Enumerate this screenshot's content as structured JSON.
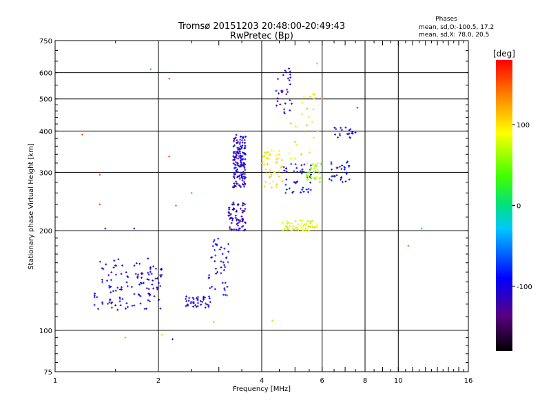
{
  "chart_data": {
    "type": "scatter",
    "title": "Tromsø 20151203 20:48:00-20:49:43",
    "subtitle": "RwPretec (Bp)",
    "xlabel": "Frequency [MHz]",
    "ylabel": "Stationary phase Virtual Height [km]",
    "x_scale": "log",
    "y_scale": "log",
    "xlim": [
      1,
      16
    ],
    "ylim": [
      75,
      750
    ],
    "x_ticks": [
      "1",
      "2",
      "4",
      "6",
      "8",
      "10",
      "16"
    ],
    "y_ticks": [
      "75",
      "100",
      "200",
      "300",
      "400",
      "500",
      "600",
      "750"
    ],
    "x_ticks_values": [
      1,
      2,
      4,
      6,
      8,
      10,
      16
    ],
    "y_ticks_values": [
      75,
      100,
      200,
      300,
      400,
      500,
      600,
      750
    ],
    "grid": true,
    "annotation": {
      "heading": "Phases",
      "line1": "mean, sd,O:-100.5, 17.2",
      "line2": "mean, sd,X:  78.0, 20.5"
    },
    "colorbar": {
      "label": "[deg]",
      "range": [
        -180,
        180
      ],
      "ticks": [
        "100",
        "0",
        "-100"
      ],
      "tick_values": [
        100,
        0,
        -100
      ]
    },
    "clusters": [
      {
        "f_min": 1.3,
        "f_max": 2.05,
        "h_min": 115,
        "h_max": 165,
        "phase": -105,
        "count": 120
      },
      {
        "f_min": 2.4,
        "f_max": 2.85,
        "h_min": 117,
        "h_max": 127,
        "phase": -100,
        "count": 40
      },
      {
        "f_min": 2.8,
        "f_max": 3.2,
        "h_min": 127,
        "h_max": 190,
        "phase": -95,
        "count": 45
      },
      {
        "f_min": 3.3,
        "f_max": 3.6,
        "h_min": 270,
        "h_max": 390,
        "phase": -105,
        "count": 150
      },
      {
        "f_min": 3.2,
        "f_max": 3.6,
        "h_min": 200,
        "h_max": 245,
        "phase": -110,
        "count": 70
      },
      {
        "f_min": 4.0,
        "f_max": 4.6,
        "h_min": 270,
        "h_max": 350,
        "phase": 95,
        "count": 50
      },
      {
        "f_min": 4.6,
        "f_max": 5.8,
        "h_min": 200,
        "h_max": 215,
        "phase": 85,
        "count": 60
      },
      {
        "f_min": 4.6,
        "f_max": 5.6,
        "h_min": 260,
        "h_max": 320,
        "phase": -95,
        "count": 45
      },
      {
        "f_min": 5.4,
        "f_max": 6.0,
        "h_min": 280,
        "h_max": 320,
        "phase": 60,
        "count": 35
      },
      {
        "f_min": 4.4,
        "f_max": 4.9,
        "h_min": 450,
        "h_max": 620,
        "phase": -110,
        "count": 30
      },
      {
        "f_min": 6.3,
        "f_max": 7.3,
        "h_min": 280,
        "h_max": 330,
        "phase": -100,
        "count": 30
      },
      {
        "f_min": 6.5,
        "f_max": 7.5,
        "h_min": 380,
        "h_max": 410,
        "phase": -110,
        "count": 20
      },
      {
        "f_min": 4.8,
        "f_max": 6.0,
        "h_min": 330,
        "h_max": 520,
        "phase": 95,
        "count": 25
      }
    ],
    "stray_points": [
      {
        "f": 1.9,
        "h": 615,
        "phase": -20
      },
      {
        "f": 2.15,
        "h": 575,
        "phase": 150
      },
      {
        "f": 1.2,
        "h": 390,
        "phase": 150
      },
      {
        "f": 1.35,
        "h": 295,
        "phase": 160
      },
      {
        "f": 1.35,
        "h": 240,
        "phase": 160
      },
      {
        "f": 1.6,
        "h": 95,
        "phase": 120
      },
      {
        "f": 2.05,
        "h": 97,
        "phase": 110
      },
      {
        "f": 2.2,
        "h": 94,
        "phase": -110
      },
      {
        "f": 2.9,
        "h": 106,
        "phase": 120
      },
      {
        "f": 4.3,
        "h": 107,
        "phase": 110
      },
      {
        "f": 10.7,
        "h": 180,
        "phase": 150
      },
      {
        "f": 11.7,
        "h": 203,
        "phase": -20
      },
      {
        "f": 1.4,
        "h": 203,
        "phase": -100
      },
      {
        "f": 2.25,
        "h": 238,
        "phase": 150
      },
      {
        "f": 2.5,
        "h": 260,
        "phase": -20
      },
      {
        "f": 1.7,
        "h": 203,
        "phase": -110
      },
      {
        "f": 2.15,
        "h": 335,
        "phase": 150
      },
      {
        "f": 7.6,
        "h": 470,
        "phase": 170
      },
      {
        "f": 6.0,
        "h": 500,
        "phase": 140
      },
      {
        "f": 5.8,
        "h": 640,
        "phase": 120
      }
    ]
  }
}
